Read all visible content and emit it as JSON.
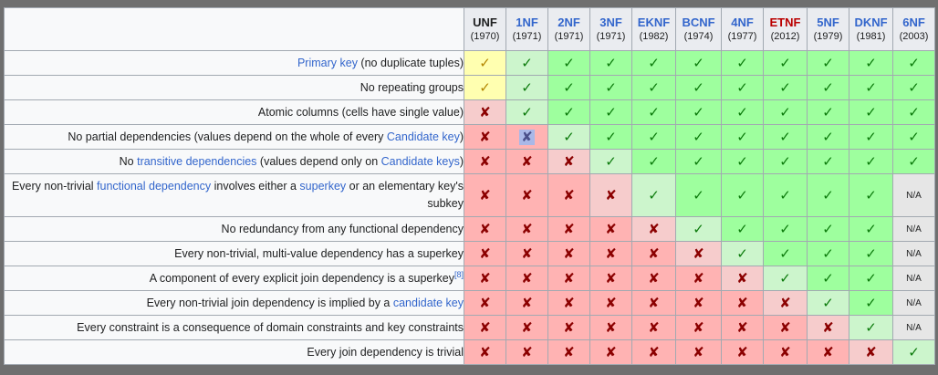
{
  "columns": [
    {
      "name": "UNF",
      "year": "(1970)",
      "color": "blk"
    },
    {
      "name": "1NF",
      "year": "(1971)",
      "color": "blue"
    },
    {
      "name": "2NF",
      "year": "(1971)",
      "color": "blue"
    },
    {
      "name": "3NF",
      "year": "(1971)",
      "color": "blue"
    },
    {
      "name": "EKNF",
      "year": "(1982)",
      "color": "blue"
    },
    {
      "name": "BCNF",
      "year": "(1974)",
      "color": "blue"
    },
    {
      "name": "4NF",
      "year": "(1977)",
      "color": "blue"
    },
    {
      "name": "ETNF",
      "year": "(2012)",
      "color": "red"
    },
    {
      "name": "5NF",
      "year": "(1979)",
      "color": "blue"
    },
    {
      "name": "DKNF",
      "year": "(1981)",
      "color": "blue"
    },
    {
      "name": "6NF",
      "year": "(2003)",
      "color": "blue"
    }
  ],
  "symbols": {
    "yes": "✓",
    "no": "✘",
    "partial": "✓",
    "na": "N/A"
  },
  "rows": [
    {
      "parts": [
        {
          "t": "Primary key",
          "link": true
        },
        {
          "t": " (no duplicate tuples)"
        }
      ],
      "cells": [
        "partial",
        "yes",
        "yes",
        "yes",
        "yes",
        "yes",
        "yes",
        "yes",
        "yes",
        "yes",
        "yes"
      ]
    },
    {
      "parts": [
        {
          "t": "No repeating groups"
        }
      ],
      "cells": [
        "partial",
        "yes",
        "yes",
        "yes",
        "yes",
        "yes",
        "yes",
        "yes",
        "yes",
        "yes",
        "yes"
      ]
    },
    {
      "parts": [
        {
          "t": "Atomic columns (cells have single value)"
        }
      ],
      "cells": [
        "no",
        "yes",
        "yes",
        "yes",
        "yes",
        "yes",
        "yes",
        "yes",
        "yes",
        "yes",
        "yes"
      ]
    },
    {
      "parts": [
        {
          "t": "No partial dependencies (values depend on the whole of every "
        },
        {
          "t": "Candidate key",
          "link": true
        },
        {
          "t": ")"
        }
      ],
      "cells": [
        "no",
        "no-hl",
        "yes",
        "yes",
        "yes",
        "yes",
        "yes",
        "yes",
        "yes",
        "yes",
        "yes"
      ]
    },
    {
      "parts": [
        {
          "t": "No "
        },
        {
          "t": "transitive dependencies",
          "link": true
        },
        {
          "t": " (values depend only on "
        },
        {
          "t": "Candidate keys",
          "link": true
        },
        {
          "t": ")"
        }
      ],
      "cells": [
        "no",
        "no",
        "no",
        "yes",
        "yes",
        "yes",
        "yes",
        "yes",
        "yes",
        "yes",
        "yes"
      ]
    },
    {
      "tall": true,
      "parts": [
        {
          "t": "Every non-trivial "
        },
        {
          "t": "functional dependency",
          "link": true
        },
        {
          "t": " involves either a "
        },
        {
          "t": "superkey",
          "link": true
        },
        {
          "t": " or an elementary key's subkey"
        }
      ],
      "cells": [
        "no",
        "no",
        "no",
        "no",
        "yes",
        "yes",
        "yes",
        "yes",
        "yes",
        "yes",
        "na"
      ]
    },
    {
      "parts": [
        {
          "t": "No redundancy from any functional dependency"
        }
      ],
      "cells": [
        "no",
        "no",
        "no",
        "no",
        "no",
        "yes",
        "yes",
        "yes",
        "yes",
        "yes",
        "na"
      ]
    },
    {
      "parts": [
        {
          "t": "Every non-trivial, multi-value dependency has a superkey"
        }
      ],
      "cells": [
        "no",
        "no",
        "no",
        "no",
        "no",
        "no",
        "yes",
        "yes",
        "yes",
        "yes",
        "na"
      ]
    },
    {
      "parts": [
        {
          "t": "A component of every explicit join dependency is a superkey"
        },
        {
          "t": "[8]",
          "sup": true
        }
      ],
      "cells": [
        "no",
        "no",
        "no",
        "no",
        "no",
        "no",
        "no",
        "yes",
        "yes",
        "yes",
        "na"
      ]
    },
    {
      "parts": [
        {
          "t": "Every non-trivial join dependency is implied by a "
        },
        {
          "t": "candidate key",
          "link": true
        }
      ],
      "cells": [
        "no",
        "no",
        "no",
        "no",
        "no",
        "no",
        "no",
        "no",
        "yes",
        "yes",
        "na"
      ]
    },
    {
      "parts": [
        {
          "t": "Every constraint is a consequence of domain constraints and key constraints"
        }
      ],
      "cells": [
        "no",
        "no",
        "no",
        "no",
        "no",
        "no",
        "no",
        "no",
        "no",
        "yes",
        "na"
      ]
    },
    {
      "parts": [
        {
          "t": "Every join dependency is trivial"
        }
      ],
      "cells": [
        "no",
        "no",
        "no",
        "no",
        "no",
        "no",
        "no",
        "no",
        "no",
        "no",
        "yes"
      ]
    }
  ]
}
